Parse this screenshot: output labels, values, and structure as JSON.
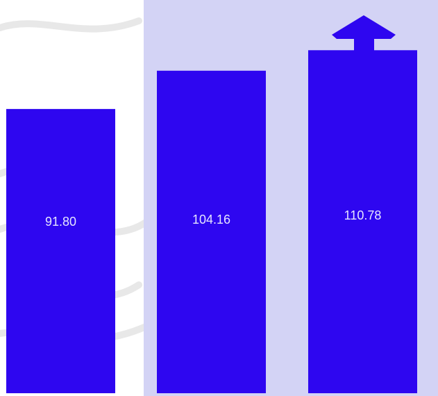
{
  "colors": {
    "bar": "#2e06f0",
    "highlight_panel": "#d3d3f5",
    "background_texture": "#d5d5d5",
    "label_text": "#e6e6ff",
    "arrow": "#2e06f0"
  },
  "icons": {
    "arrow": "up-arrow-icon"
  },
  "chart_data": {
    "type": "bar",
    "title": "",
    "xlabel": "",
    "ylabel": "",
    "categories": [
      "",
      "",
      ""
    ],
    "values": [
      91.8,
      104.16,
      110.78
    ],
    "value_labels": [
      "91.80",
      "104.16",
      "110.78"
    ],
    "ylim": [
      0,
      127
    ],
    "grid": false,
    "legend": "none"
  }
}
